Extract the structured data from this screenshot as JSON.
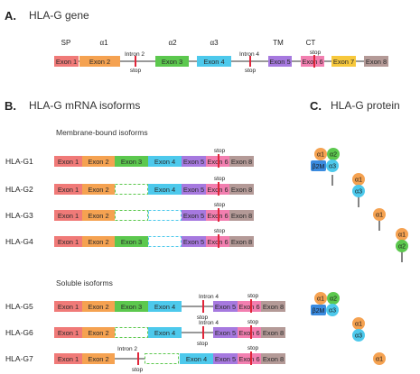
{
  "panels": {
    "a_letter": "A.",
    "a_title": "HLA-G gene",
    "b_letter": "B.",
    "b_title": "HLA-G mRNA isoforms",
    "c_letter": "C.",
    "c_title": "HLA-G protein",
    "membrane_label": "Membrane-bound isoforms",
    "soluble_label": "Soluble isoforms"
  },
  "gene": {
    "domains": {
      "sp": "SP",
      "a1": "α1",
      "a2": "α2",
      "a3": "α3",
      "tm": "TM",
      "ct": "CT"
    },
    "intron2": "Intron 2",
    "intron4": "Intron 4",
    "stop": "stop",
    "exons": [
      "Exon 1",
      "Exon 2",
      "Exon 3",
      "Exon 4",
      "Exon 5",
      "Exon 6",
      "Exon 7",
      "Exon 8"
    ]
  },
  "isoforms": {
    "rows": [
      "HLA-G1",
      "HLA-G2",
      "HLA-G3",
      "HLA-G4",
      "HLA-G5",
      "HLA-G6",
      "HLA-G7"
    ],
    "exon_labels": {
      "e1": "Exon 1",
      "e2": "Exon 2",
      "e3": "Exon 3",
      "e4": "Exon 4",
      "e5": "Exon 5",
      "e6": "Exon 6",
      "e8": "Exon 8"
    },
    "intron4": "Intron 4",
    "intron2": "Intron 2",
    "stop": "stop"
  },
  "protein": {
    "a1": "α1",
    "a2": "α2",
    "a3": "α3",
    "b2m": "β2M"
  },
  "colors": {
    "exon1": "#f07a78",
    "exon2": "#f5a251",
    "exon3": "#5cc84e",
    "exon4": "#4dc9ec",
    "exon5": "#a679df",
    "exon6": "#f27fb0",
    "exon7": "#f7c83c",
    "exon8": "#b49a97",
    "stop": "#e0263a",
    "b2m": "#3a8be0"
  }
}
